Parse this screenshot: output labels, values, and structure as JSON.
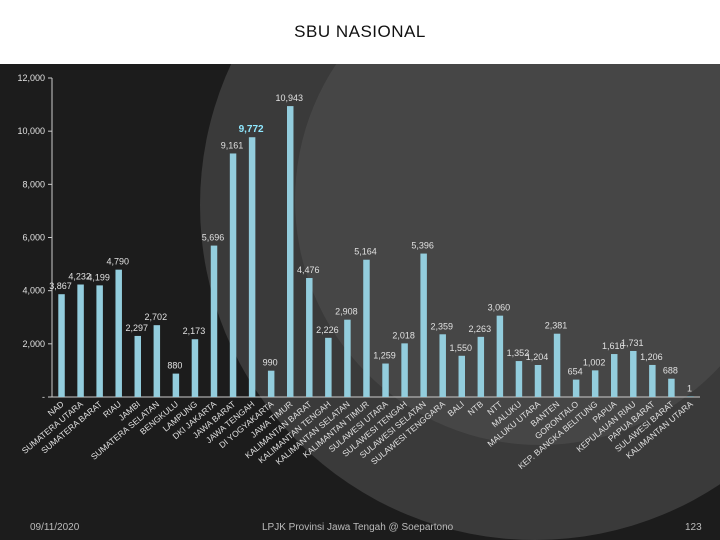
{
  "slide": {
    "footer_date": "09/11/2020",
    "footer_center": "LPJK Provinsi Jawa Tengah @ Soepartono",
    "page_number": "123"
  },
  "chart_data": {
    "type": "bar",
    "title": "SBU  NASIONAL",
    "xlabel": "",
    "ylabel": "",
    "ylim": [
      0,
      12000
    ],
    "yticks": [
      0,
      2000,
      4000,
      6000,
      8000,
      10000,
      12000
    ],
    "ytick_labels": [
      "-",
      "2,000",
      "4,000",
      "6,000",
      "8,000",
      "10,000",
      "12,000"
    ],
    "grid": false,
    "legend": "none",
    "colors": {
      "bar": "#93cddd",
      "highlight_label": "#8fe8ff",
      "label": "#e0e0e0",
      "axis": "#cccccc"
    },
    "categories": [
      "NAD",
      "SUMATERA UTARA",
      "SUMATERA BARAT",
      "RIAU",
      "JAMBI",
      "SUMATERA SELATAN",
      "BENGKULU",
      "LAMPUNG",
      "DKI JAKARTA",
      "JAWA BARAT",
      "JAWA TENGAH",
      "DI YOGYAKARTA",
      "JAWA TIMUR",
      "KALIMANTAN BARAT",
      "KALIMANTAN TENGAH",
      "KALIMANTAN SELATAN",
      "KALIMANTAN TIMUR",
      "SULAWESI UTARA",
      "SULAWESI TENGAH",
      "SULAWESI SELATAN",
      "SULAWESI TENGGARA",
      "BALI",
      "NTB",
      "NTT",
      "MALUKU",
      "MALUKU UTARA",
      "BANTEN",
      "GORONTALO",
      "KEP. BANGKA BELITUNG",
      "PAPUA",
      "KEPULAUAN RIAU",
      "PAPUA BARAT",
      "SULAWESI BARAT",
      "KALIMANTAN UTARA"
    ],
    "values": [
      3867,
      4232,
      4199,
      4790,
      2297,
      2702,
      880,
      2173,
      5696,
      9161,
      9772,
      990,
      10943,
      4476,
      2226,
      2908,
      5164,
      1259,
      2018,
      5396,
      2359,
      1550,
      2263,
      3060,
      1352,
      1204,
      2381,
      654,
      1002,
      1616,
      1731,
      1206,
      688,
      1
    ],
    "data_labels": [
      "3,867",
      "4,232",
      "4,199",
      "4,790",
      "2,297",
      "2,702",
      "880",
      "2,173",
      "5,696",
      "9,161",
      "9,772",
      "990",
      "10,943",
      "4,476",
      "2,226",
      "2,908",
      "5,164",
      "1,259",
      "2,018",
      "5,396",
      "2,359",
      "1,550",
      "2,263",
      "3,060",
      "1,352",
      "1,204",
      "2,381",
      "654",
      "1,002",
      "1,616",
      "1,731",
      "1,206",
      "688",
      "1"
    ],
    "highlight_index": 10
  }
}
